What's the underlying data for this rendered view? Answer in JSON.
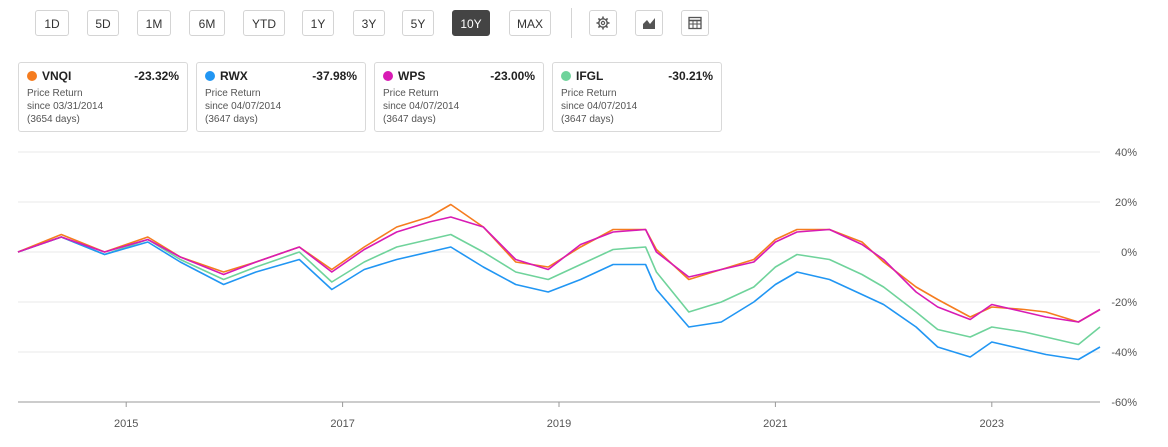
{
  "toolbar": {
    "ranges": [
      "1D",
      "5D",
      "1M",
      "6M",
      "YTD",
      "1Y",
      "3Y",
      "5Y",
      "10Y",
      "MAX"
    ],
    "active_range": "10Y"
  },
  "cards": [
    {
      "ticker": "VNQI",
      "change": "-23.32%",
      "label": "Price Return",
      "since": "since 03/31/2014",
      "days": "(3654 days)",
      "color": "#f57c1f"
    },
    {
      "ticker": "RWX",
      "change": "-37.98%",
      "label": "Price Return",
      "since": "since 04/07/2014",
      "days": "(3647 days)",
      "color": "#2196f3"
    },
    {
      "ticker": "WPS",
      "change": "-23.00%",
      "label": "Price Return",
      "since": "since 04/07/2014",
      "days": "(3647 days)",
      "color": "#d81bb4"
    },
    {
      "ticker": "IFGL",
      "change": "-30.21%",
      "label": "Price Return",
      "since": "since 04/07/2014",
      "days": "(3647 days)",
      "color": "#6fd39b"
    }
  ],
  "chart_data": {
    "type": "line",
    "y_ticks": [
      "40%",
      "20%",
      "0%",
      "-20%",
      "-40%",
      "-60%"
    ],
    "ylim": [
      -60,
      40
    ],
    "x_ticks": [
      "2015",
      "2017",
      "2019",
      "2021",
      "2023"
    ],
    "x_tick_years": [
      2015.0,
      2017.0,
      2019.0,
      2021.0,
      2023.0
    ],
    "xlim": [
      2014.0,
      2024.0
    ],
    "x": [
      2014.0,
      2014.4,
      2014.8,
      2015.2,
      2015.5,
      2015.9,
      2016.2,
      2016.6,
      2016.9,
      2017.2,
      2017.5,
      2017.8,
      2018.0,
      2018.3,
      2018.6,
      2018.9,
      2019.2,
      2019.5,
      2019.8,
      2019.9,
      2020.2,
      2020.5,
      2020.8,
      2021.0,
      2021.2,
      2021.5,
      2021.8,
      2022.0,
      2022.3,
      2022.5,
      2022.8,
      2023.0,
      2023.3,
      2023.5,
      2023.8,
      2024.0
    ],
    "series": [
      {
        "name": "VNQI",
        "color": "#f57c1f",
        "values": [
          0,
          7,
          0,
          6,
          -2,
          -8,
          -4,
          2,
          -7,
          2,
          10,
          14,
          19,
          10,
          -4,
          -6,
          2,
          9,
          9,
          1,
          -11,
          -7,
          -3,
          5,
          9,
          9,
          4,
          -4,
          -14,
          -19,
          -26,
          -22,
          -23,
          -24,
          -28,
          -23
        ]
      },
      {
        "name": "RWX",
        "color": "#2196f3",
        "values": [
          0,
          6,
          -1,
          4,
          -4,
          -13,
          -8,
          -3,
          -15,
          -7,
          -3,
          0,
          2,
          -6,
          -13,
          -16,
          -11,
          -5,
          -5,
          -15,
          -30,
          -28,
          -20,
          -13,
          -8,
          -11,
          -17,
          -21,
          -30,
          -38,
          -42,
          -36,
          -39,
          -41,
          -43,
          -38
        ]
      },
      {
        "name": "WPS",
        "color": "#d81bb4",
        "values": [
          0,
          6,
          0,
          5,
          -2,
          -9,
          -4,
          2,
          -8,
          1,
          8,
          12,
          14,
          10,
          -3,
          -7,
          3,
          8,
          9,
          0,
          -10,
          -7,
          -4,
          4,
          8,
          9,
          3,
          -3,
          -16,
          -22,
          -27,
          -21,
          -24,
          -26,
          -28,
          -23
        ]
      },
      {
        "name": "IFGL",
        "color": "#6fd39b",
        "values": [
          0,
          6,
          -1,
          5,
          -3,
          -11,
          -6,
          0,
          -12,
          -4,
          2,
          5,
          7,
          0,
          -8,
          -11,
          -5,
          1,
          2,
          -8,
          -24,
          -20,
          -14,
          -6,
          -1,
          -3,
          -9,
          -14,
          -24,
          -31,
          -34,
          -30,
          -32,
          -34,
          -37,
          -30
        ]
      }
    ],
    "grid": true,
    "legend": "top"
  }
}
